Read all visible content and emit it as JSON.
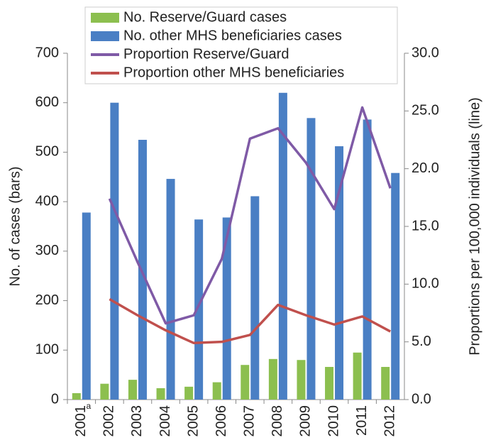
{
  "chart_data": {
    "type": "bar-line",
    "categories": [
      "2001",
      "2002",
      "2003",
      "2004",
      "2005",
      "2006",
      "2007",
      "2008",
      "2009",
      "2010",
      "2011",
      "2012"
    ],
    "annotations": [
      "a"
    ],
    "ylabel": "No. of cases (bars)",
    "y2label": "Proportions per 100,000 individuals (line)",
    "ylim": [
      0,
      700
    ],
    "yticks": [
      0,
      100,
      200,
      300,
      400,
      500,
      600,
      700
    ],
    "y2lim": [
      0,
      30
    ],
    "y2ticks": [
      {
        "value": 0,
        "label": "0.0"
      },
      {
        "value": 5,
        "label": "5.0"
      },
      {
        "value": 10,
        "label": "10.0"
      },
      {
        "value": 15,
        "label": "15.0"
      },
      {
        "value": 20,
        "label": "20.0"
      },
      {
        "value": 25,
        "label": "25.0"
      },
      {
        "value": 30,
        "label": "30.0"
      }
    ],
    "series": [
      {
        "name": "No. Reserve/Guard cases",
        "kind": "bar",
        "color": "#8cbf4f",
        "values": [
          13,
          32,
          40,
          23,
          26,
          35,
          70,
          82,
          80,
          66,
          95,
          66
        ]
      },
      {
        "name": "No. other MHS beneficiaries cases",
        "kind": "bar",
        "color": "#4a7fc4",
        "values": [
          378,
          600,
          525,
          446,
          364,
          368,
          411,
          620,
          569,
          512,
          566,
          458
        ]
      },
      {
        "name": "Proportion Reserve/Guard",
        "kind": "line",
        "axis": "y2",
        "color": "#7f5aa6",
        "values": [
          null,
          17.4,
          11.9,
          6.6,
          7.3,
          12.2,
          22.6,
          23.5,
          20.5,
          16.5,
          25.3,
          18.3
        ]
      },
      {
        "name": "Proportion other MHS beneficiaries",
        "kind": "line",
        "axis": "y2",
        "color": "#c0504d",
        "values": [
          null,
          8.7,
          7.3,
          6.0,
          4.9,
          5.0,
          5.6,
          8.2,
          7.3,
          6.5,
          7.2,
          5.9
        ]
      }
    ]
  }
}
